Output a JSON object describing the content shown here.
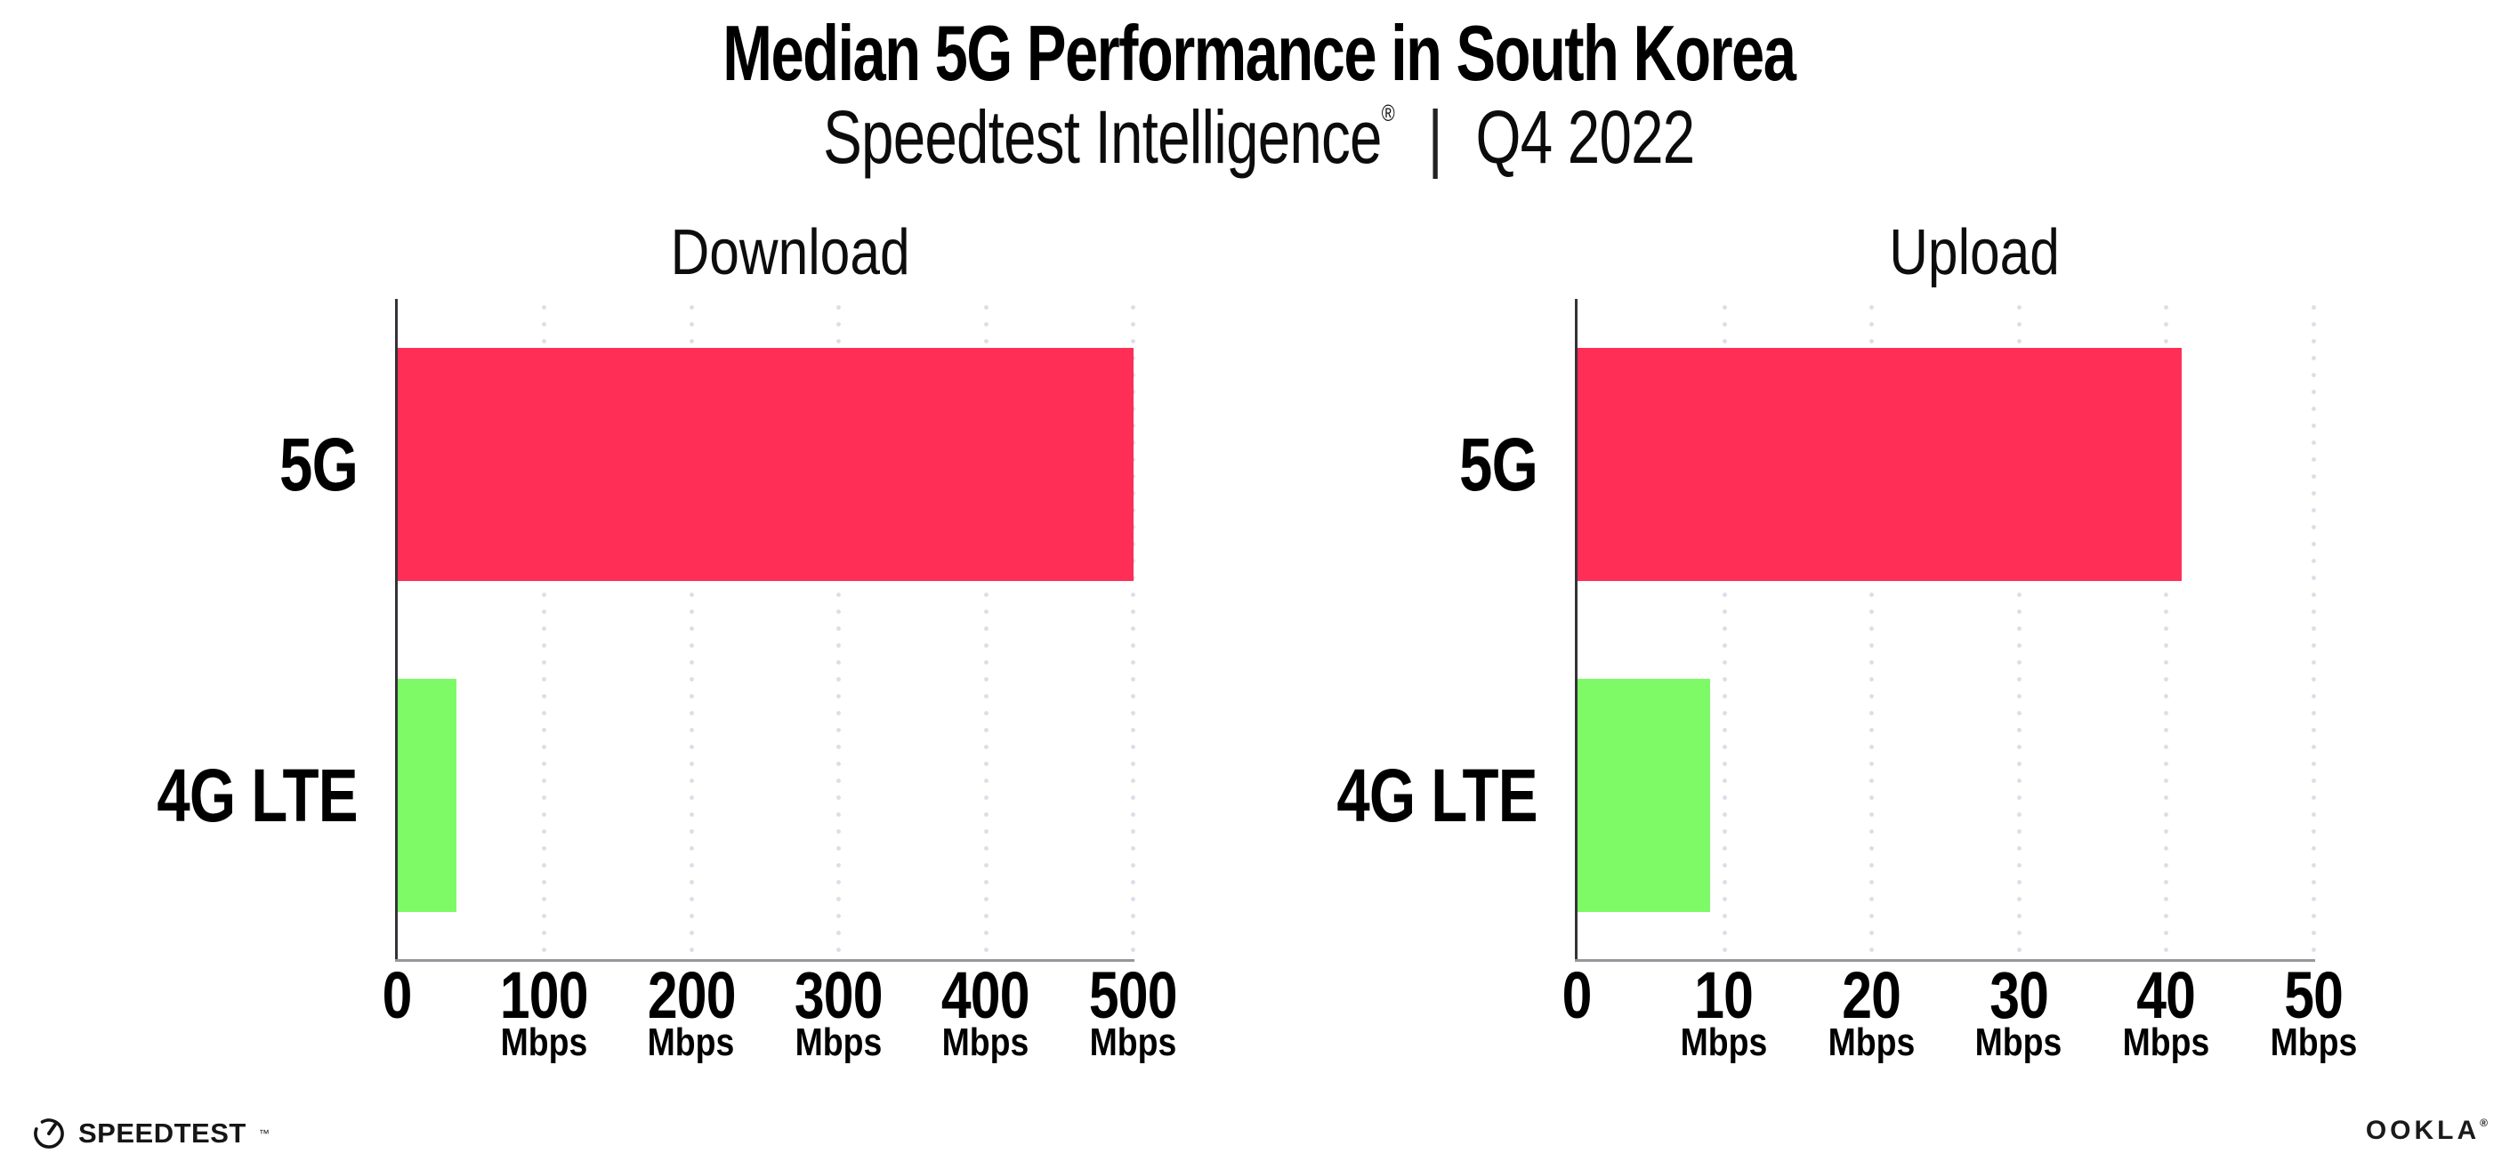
{
  "header": {
    "title": "Median 5G Performance in South Korea",
    "subtitle_brand": "Speedtest Intelligence",
    "subtitle_reg": "®",
    "subtitle_sep": "|",
    "subtitle_period": "Q4 2022"
  },
  "colors": {
    "bar_5g": "#ff2e56",
    "bar_4g_lte": "#7dfa66",
    "gridline": "#dcdde9",
    "y_axis": "#333338",
    "x_axis": "#97979c",
    "text": "#000000",
    "background": "#ffffff"
  },
  "chart_data": [
    {
      "type": "bar",
      "orientation": "horizontal",
      "title": "Download",
      "categories": [
        "5G",
        "4G LTE"
      ],
      "values": [
        500,
        40
      ],
      "unit": "Mbps",
      "xlim": [
        0,
        500
      ],
      "xticks": [
        0,
        100,
        200,
        300,
        400,
        500
      ],
      "tick_unit_label": "Mbps",
      "bar_colors": [
        "#ff2e56",
        "#7dfa66"
      ],
      "grid": "dotted-vertical",
      "legend": "none"
    },
    {
      "type": "bar",
      "orientation": "horizontal",
      "title": "Upload",
      "categories": [
        "5G",
        "4G LTE"
      ],
      "values": [
        41,
        9
      ],
      "unit": "Mbps",
      "xlim": [
        0,
        50
      ],
      "xticks": [
        0,
        10,
        20,
        30,
        40,
        50
      ],
      "tick_unit_label": "Mbps",
      "bar_colors": [
        "#ff2e56",
        "#7dfa66"
      ],
      "grid": "dotted-vertical",
      "legend": "none"
    }
  ],
  "footer": {
    "speedtest_label": "SPEEDTEST",
    "speedtest_tm": "™",
    "ookla_label": "OOKLA",
    "ookla_reg": "®"
  }
}
